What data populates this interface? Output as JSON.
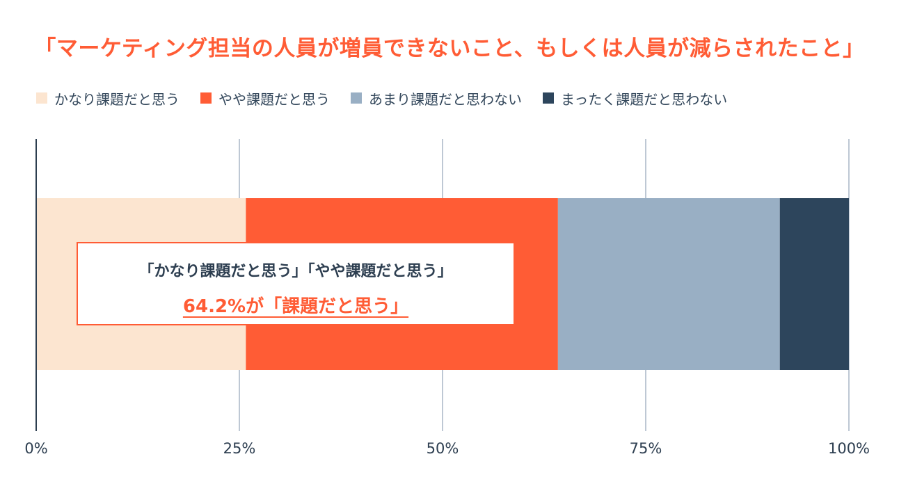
{
  "chart_data": {
    "type": "bar",
    "orientation": "horizontal",
    "stacked": true,
    "title": "「マーケティング担当の人員が増員できないこと、もしくは人員が減らされたこと」",
    "categories": [
      ""
    ],
    "series": [
      {
        "name": "かなり課題だと思う",
        "values": [
          25.8
        ],
        "color": "#fce5d0"
      },
      {
        "name": "やや課題だと思う",
        "values": [
          38.4
        ],
        "color": "#ff5c35"
      },
      {
        "name": "あまり課題だと思わない",
        "values": [
          27.3
        ],
        "color": "#99afc4"
      },
      {
        "name": "まったく課題だと思わない",
        "values": [
          8.5
        ],
        "color": "#2d455c"
      }
    ],
    "xlim": [
      0,
      100
    ],
    "xticks": [
      0,
      25,
      50,
      75,
      100
    ],
    "xtick_labels": [
      "0%",
      "25%",
      "50%",
      "75%",
      "100%"
    ],
    "xlabel": "",
    "ylabel": "",
    "grid": true,
    "legend_position": "top-left"
  },
  "callout": {
    "line1": "「かなり課題だと思う」「やや課題だと思う」",
    "line2": "64.2%が「課題だと思う」"
  },
  "colors": {
    "title": "#ff5c35",
    "axis": "#2d3e50",
    "grid": "#a9b6c6",
    "tick_label": "#2d3e50"
  }
}
